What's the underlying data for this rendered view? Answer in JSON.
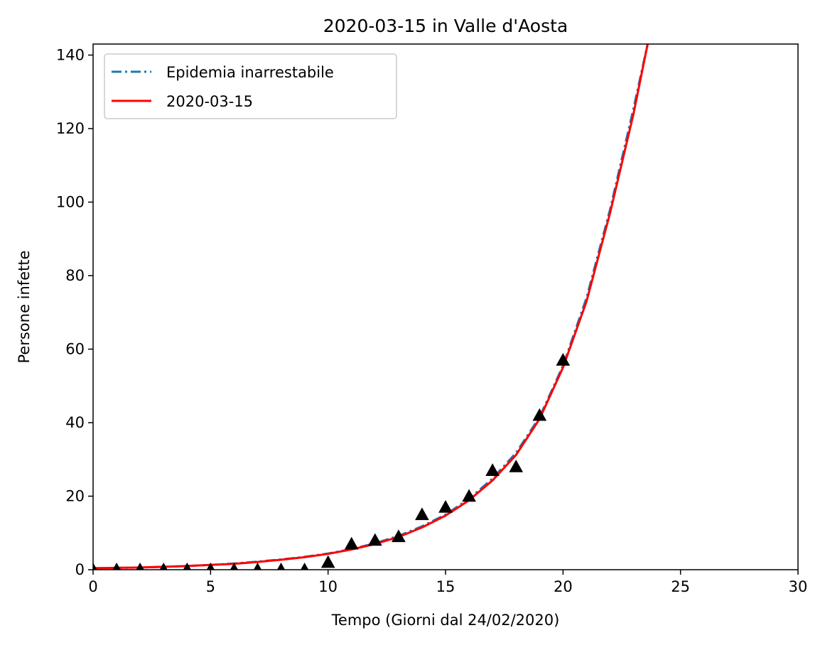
{
  "chart_data": {
    "type": "line",
    "title": "2020-03-15 in Valle d'Aosta",
    "xlabel": "Tempo (Giorni dal 24/02/2020)",
    "ylabel": "Persone infette",
    "xlim": [
      0,
      30
    ],
    "ylim": [
      0,
      143
    ],
    "xticks": [
      0,
      5,
      10,
      15,
      20,
      25,
      30
    ],
    "yticks": [
      0,
      20,
      40,
      60,
      80,
      100,
      120,
      140
    ],
    "grid": false,
    "legend_position": "top-left",
    "series": [
      {
        "name": "Epidemia inarrestabile",
        "style": "dash-dot",
        "color": "#1f77b4",
        "x": [
          0,
          1,
          2,
          3,
          4,
          5,
          6,
          7,
          8,
          9,
          10,
          11,
          12,
          13,
          14,
          15,
          16,
          17,
          18,
          19,
          20,
          21,
          22,
          23,
          23.6
        ],
        "y": [
          0.4,
          0.5,
          0.6,
          0.8,
          1.0,
          1.3,
          1.7,
          2.2,
          2.8,
          3.5,
          4.4,
          5.6,
          7.2,
          9.2,
          11.8,
          15.0,
          19.3,
          24.8,
          31.8,
          41.5,
          55.5,
          74.0,
          98.0,
          125.5,
          143
        ]
      },
      {
        "name": "2020-03-15",
        "style": "solid",
        "color": "#ff0000",
        "x": [
          0,
          1,
          2,
          3,
          4,
          5,
          6,
          7,
          8,
          9,
          10,
          11,
          12,
          13,
          14,
          15,
          16,
          17,
          18,
          19,
          20,
          21,
          22,
          23,
          23.6
        ],
        "y": [
          0.4,
          0.5,
          0.6,
          0.8,
          1.0,
          1.3,
          1.6,
          2.1,
          2.7,
          3.4,
          4.3,
          5.5,
          7.0,
          8.9,
          11.5,
          14.7,
          18.9,
          24.3,
          31.2,
          41.0,
          55.0,
          73.0,
          97.0,
          124.0,
          143
        ]
      },
      {
        "name": "",
        "style": "markers",
        "marker": "triangle",
        "color": "#000000",
        "x": [
          0,
          1,
          2,
          3,
          4,
          5,
          6,
          7,
          8,
          9,
          10,
          11,
          12,
          13,
          14,
          15,
          16,
          17,
          18,
          19,
          20
        ],
        "y": [
          0,
          0,
          0,
          0,
          0,
          0,
          0,
          0,
          0,
          0,
          2,
          7,
          8,
          9,
          15,
          17,
          20,
          27,
          28,
          42,
          57
        ]
      }
    ]
  }
}
